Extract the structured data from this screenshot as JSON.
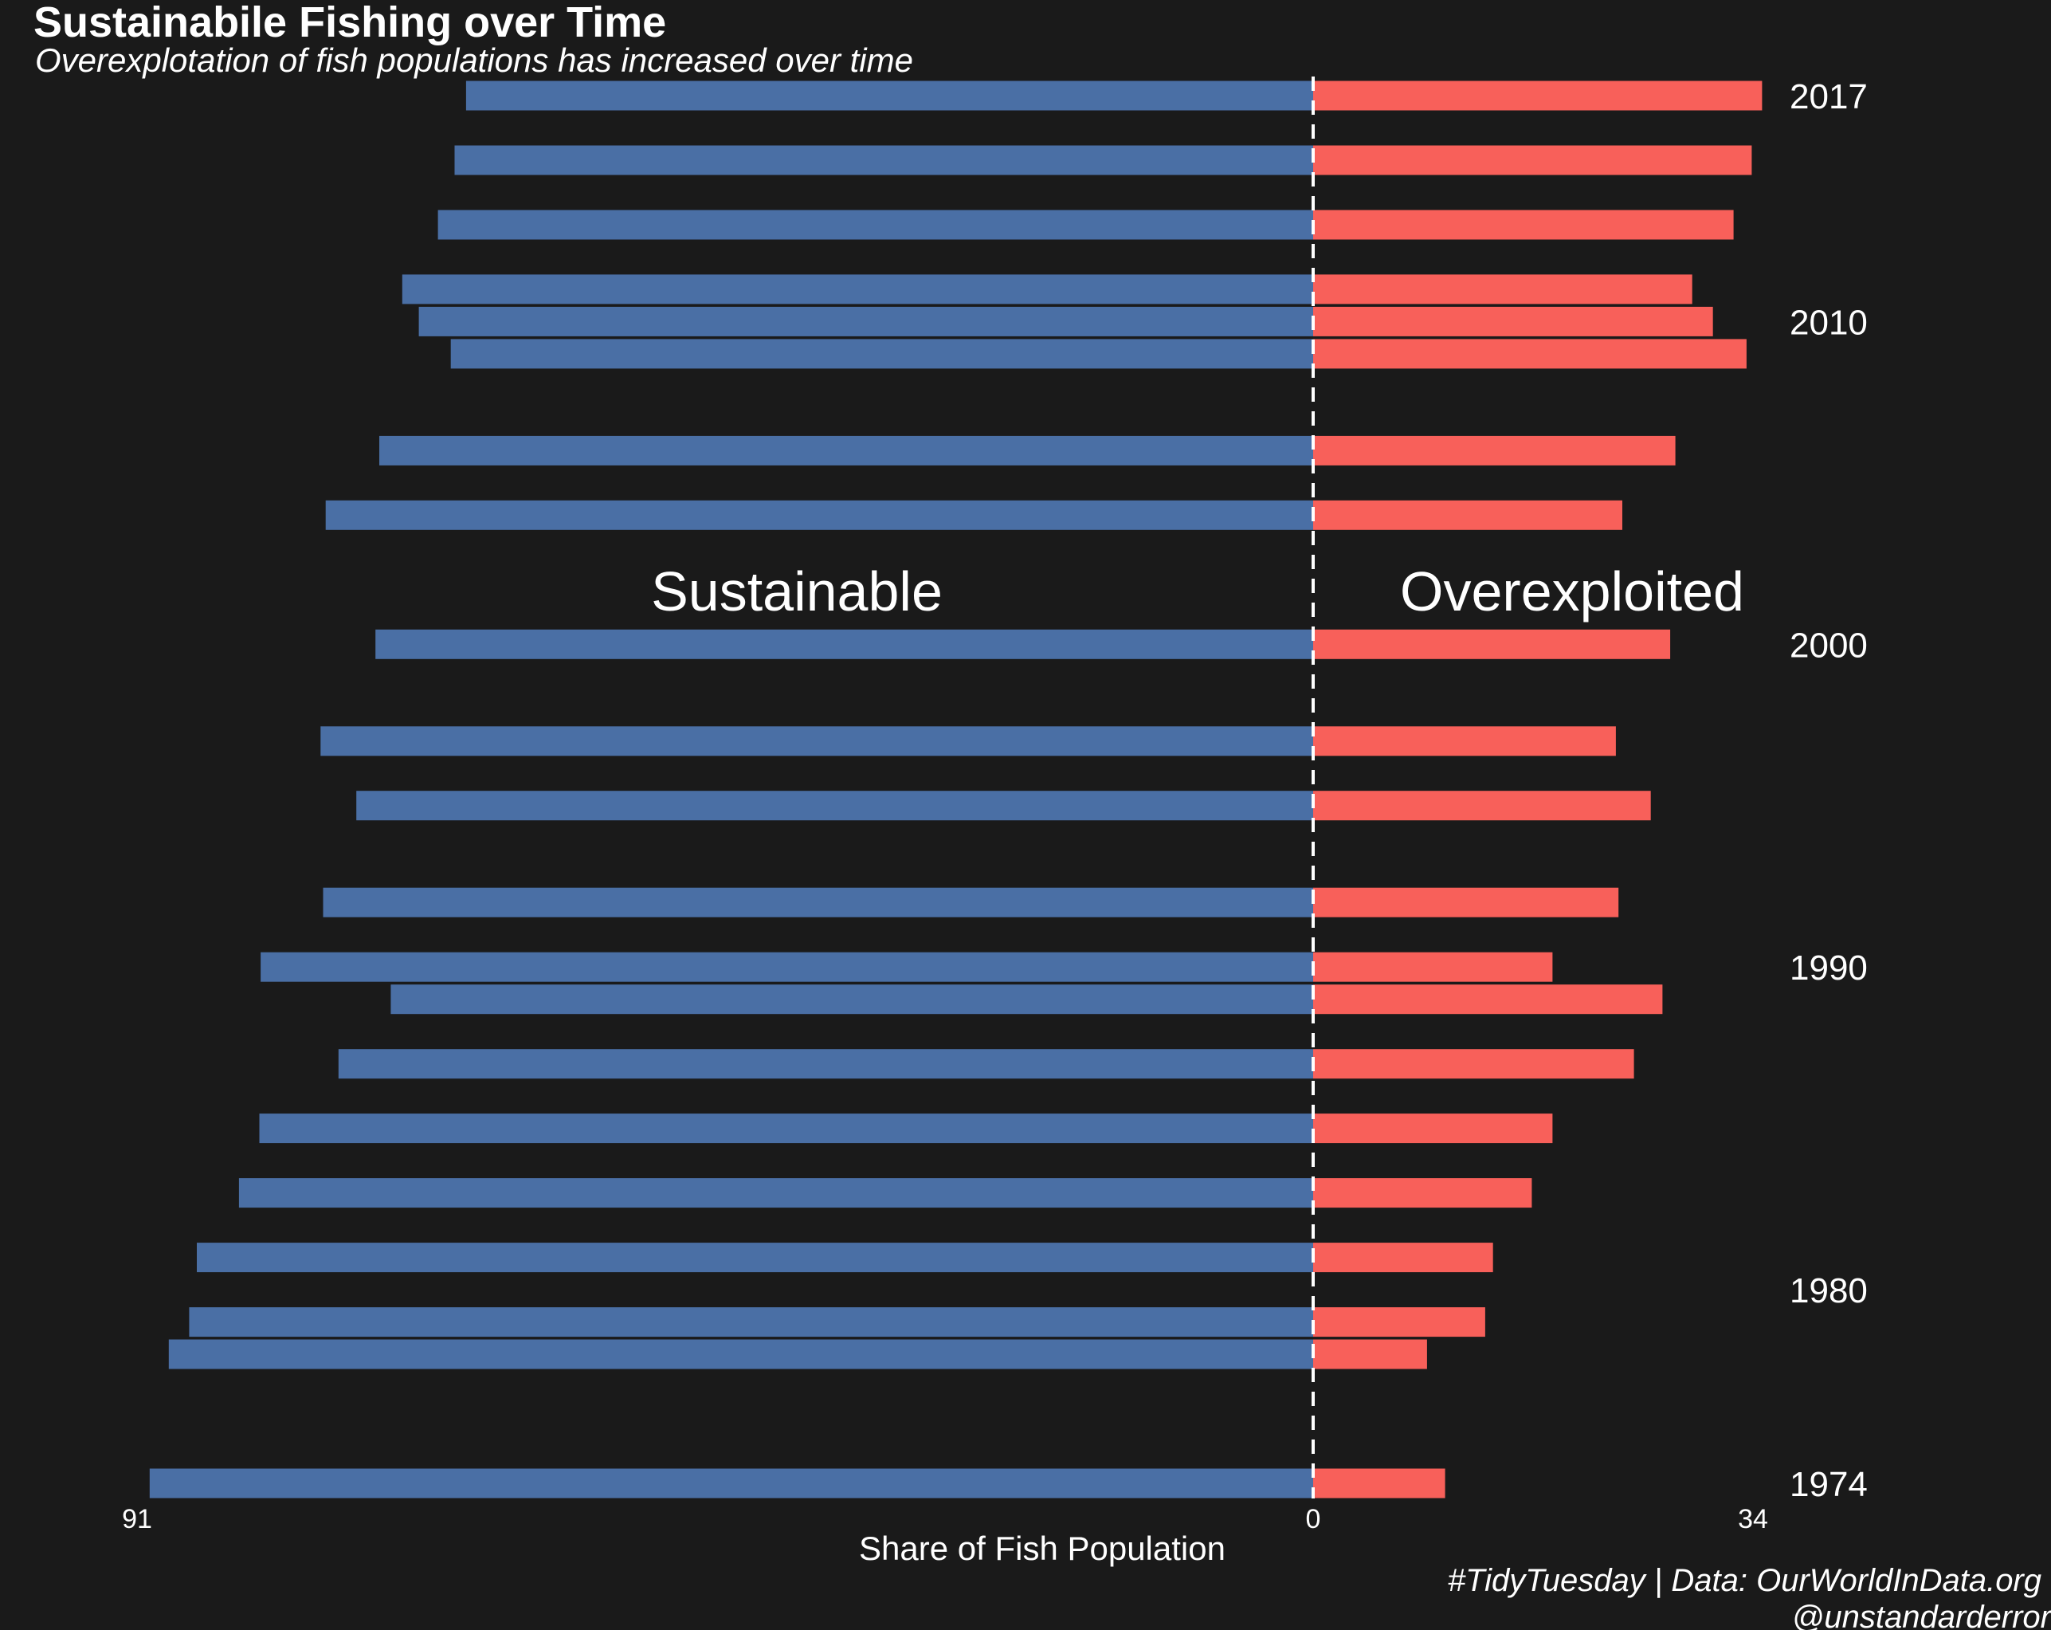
{
  "title": "Sustainabile Fishing over Time",
  "subtitle": "Overexplotation of fish populations has increased over time",
  "caption_line1": "#TidyTuesday | Data: OurWorldInData.org",
  "caption_line2": "@unstandarderror",
  "colors": {
    "background": "#1a1a1a",
    "sustainable": "#4a6fa5",
    "overexploited": "#f8605a",
    "text": "#ffffff"
  },
  "chart_data": {
    "type": "bar",
    "orientation": "horizontal-diverging",
    "xlabel": "Share of Fish Population",
    "xlim": [
      -91,
      34
    ],
    "x_tick_labels": [
      "91",
      "0",
      "34"
    ],
    "y_tick_labels": [
      "2017",
      "2010",
      "2000",
      "1990",
      "1980",
      "1974"
    ],
    "y_ticks": [
      2017,
      2010,
      2000,
      1990,
      1980,
      1974
    ],
    "ylim": [
      1973.5,
      2017.5
    ],
    "annotations": [
      "Sustainable",
      "Overexploited"
    ],
    "years": [
      1974,
      1978,
      1979,
      1981,
      1983,
      1985,
      1987,
      1989,
      1990,
      1992,
      1995,
      1997,
      2000,
      2004,
      2006,
      2009,
      2010,
      2011,
      2013,
      2015,
      2017
    ],
    "series": [
      {
        "name": "Sustainable",
        "values": [
          91.2,
          89.7,
          88.1,
          87.5,
          84.2,
          82.6,
          76.4,
          72.3,
          82.5,
          77.6,
          75.0,
          77.8,
          73.5,
          77.4,
          73.2,
          67.6,
          70.1,
          71.4,
          68.6,
          67.3,
          66.4
        ]
      },
      {
        "name": "Overexploited",
        "values": [
          10.2,
          8.8,
          13.3,
          13.9,
          16.9,
          18.5,
          24.8,
          27.0,
          18.5,
          23.6,
          26.1,
          23.4,
          27.6,
          23.9,
          28.0,
          33.5,
          30.9,
          29.3,
          32.5,
          33.9,
          34.7
        ]
      }
    ]
  }
}
